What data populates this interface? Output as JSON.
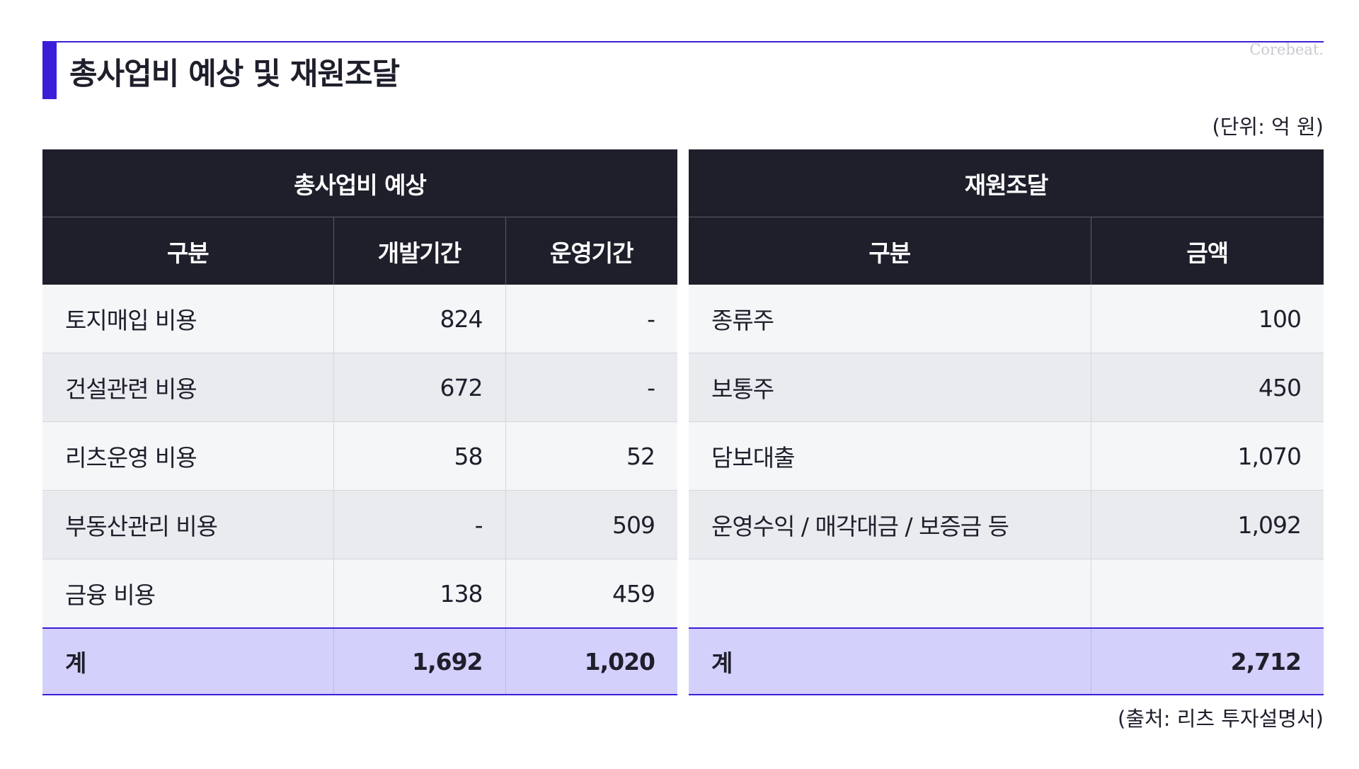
{
  "page": {
    "title": "총사업비 예상 및 재원조달",
    "watermark": "Corebeat.",
    "unit_note": "(단위: 억 원)",
    "source_note": "(출처: 리츠 투자설명서)"
  },
  "colors": {
    "accent": "#3b1fd8",
    "header_bg": "#1e1f2b",
    "total_row_bg": "#d3d1fb",
    "row_light": "#f5f6f8",
    "row_dark": "#e9ebef"
  },
  "cost_table": {
    "group_header": "총사업비 예상",
    "columns": [
      "구분",
      "개발기간",
      "운영기간"
    ],
    "rows": [
      {
        "label": "토지매입 비용",
        "dev": "824",
        "ops": "-"
      },
      {
        "label": "건설관련 비용",
        "dev": "672",
        "ops": "-"
      },
      {
        "label": "리츠운영 비용",
        "dev": "58",
        "ops": "52"
      },
      {
        "label": "부동산관리 비용",
        "dev": "-",
        "ops": "509"
      },
      {
        "label": "금융 비용",
        "dev": "138",
        "ops": "459"
      }
    ],
    "total": {
      "label": "계",
      "dev": "1,692",
      "ops": "1,020"
    }
  },
  "funding_table": {
    "group_header": "재원조달",
    "columns": [
      "구분",
      "금액"
    ],
    "rows": [
      {
        "label": "종류주",
        "amount": "100"
      },
      {
        "label": "보통주",
        "amount": "450"
      },
      {
        "label": "담보대출",
        "amount": "1,070"
      },
      {
        "label": "운영수익 / 매각대금 / 보증금 등",
        "amount": "1,092"
      },
      {
        "label": "",
        "amount": ""
      }
    ],
    "total": {
      "label": "계",
      "amount": "2,712"
    }
  }
}
